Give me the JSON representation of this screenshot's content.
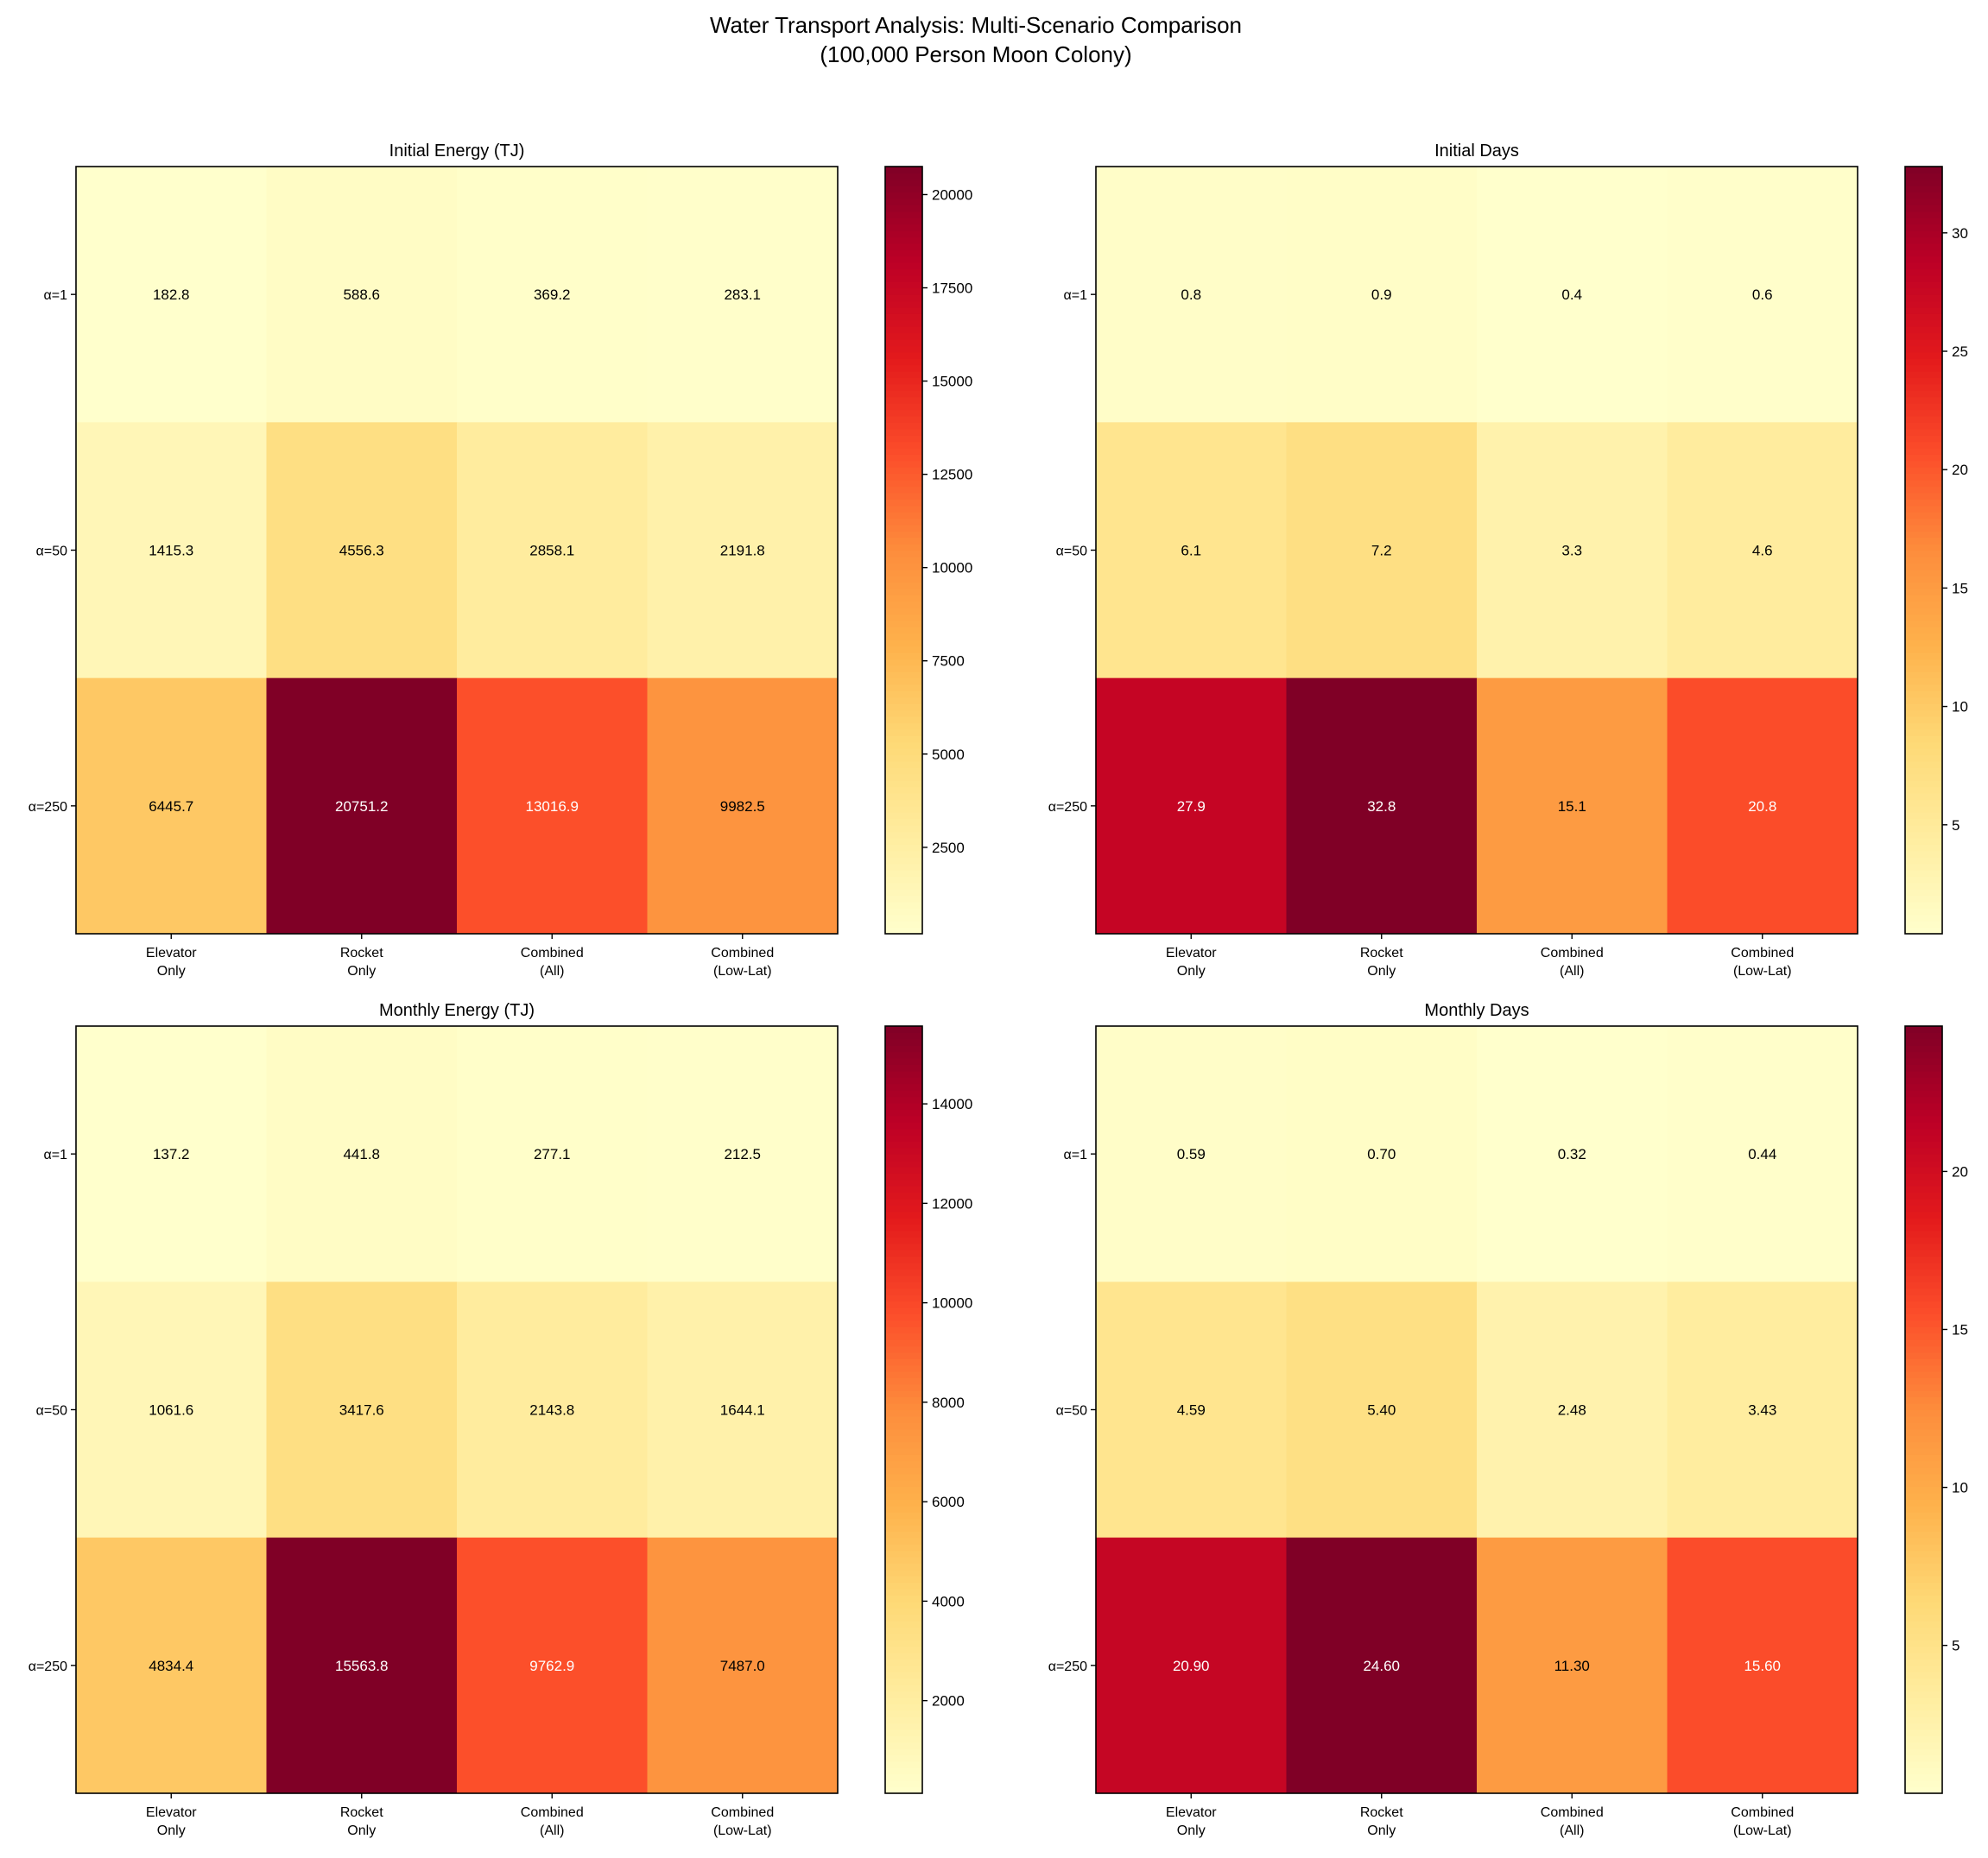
{
  "title_line1": "Water Transport Analysis: Multi-Scenario Comparison",
  "title_line2": "(100,000 Person Moon Colony)",
  "chart_data": [
    {
      "type": "heatmap",
      "title": "Initial Energy (TJ)",
      "colormap": "YlOrRd",
      "x_categories": [
        [
          "Elevator",
          "Only"
        ],
        [
          "Rocket",
          "Only"
        ],
        [
          "Combined",
          "(All)"
        ],
        [
          "Combined",
          "(Low-Lat)"
        ]
      ],
      "y_categories": [
        "α=1",
        "α=50",
        "α=250"
      ],
      "values": [
        [
          182.8,
          588.6,
          369.2,
          283.1
        ],
        [
          1415.3,
          4556.3,
          2858.1,
          2191.8
        ],
        [
          6445.7,
          20751.2,
          13016.9,
          9982.5
        ]
      ],
      "labels": [
        [
          "182.8",
          "588.6",
          "369.2",
          "283.1"
        ],
        [
          "1415.3",
          "4556.3",
          "2858.1",
          "2191.8"
        ],
        [
          "6445.7",
          "20751.2",
          "13016.9",
          "9982.5"
        ]
      ],
      "colorbar_range": [
        182.8,
        20751.2
      ],
      "colorbar_ticks": [
        "2500",
        "5000",
        "7500",
        "10000",
        "12500",
        "15000",
        "17500",
        "20000"
      ]
    },
    {
      "type": "heatmap",
      "title": "Initial Days",
      "colormap": "YlOrRd",
      "x_categories": [
        [
          "Elevator",
          "Only"
        ],
        [
          "Rocket",
          "Only"
        ],
        [
          "Combined",
          "(All)"
        ],
        [
          "Combined",
          "(Low-Lat)"
        ]
      ],
      "y_categories": [
        "α=1",
        "α=50",
        "α=250"
      ],
      "values": [
        [
          0.8,
          0.9,
          0.4,
          0.6
        ],
        [
          6.1,
          7.2,
          3.3,
          4.6
        ],
        [
          27.9,
          32.8,
          15.1,
          20.8
        ]
      ],
      "labels": [
        [
          "0.8",
          "0.9",
          "0.4",
          "0.6"
        ],
        [
          "6.1",
          "7.2",
          "3.3",
          "4.6"
        ],
        [
          "27.9",
          "32.8",
          "15.1",
          "20.8"
        ]
      ],
      "colorbar_range": [
        0.4,
        32.8
      ],
      "colorbar_ticks": [
        "5",
        "10",
        "15",
        "20",
        "25",
        "30"
      ]
    },
    {
      "type": "heatmap",
      "title": "Monthly Energy (TJ)",
      "colormap": "YlOrRd",
      "x_categories": [
        [
          "Elevator",
          "Only"
        ],
        [
          "Rocket",
          "Only"
        ],
        [
          "Combined",
          "(All)"
        ],
        [
          "Combined",
          "(Low-Lat)"
        ]
      ],
      "y_categories": [
        "α=1",
        "α=50",
        "α=250"
      ],
      "values": [
        [
          137.2,
          441.8,
          277.1,
          212.5
        ],
        [
          1061.6,
          3417.6,
          2143.8,
          1644.1
        ],
        [
          4834.4,
          15563.8,
          9762.9,
          7487.0
        ]
      ],
      "labels": [
        [
          "137.2",
          "441.8",
          "277.1",
          "212.5"
        ],
        [
          "1061.6",
          "3417.6",
          "2143.8",
          "1644.1"
        ],
        [
          "4834.4",
          "15563.8",
          "9762.9",
          "7487.0"
        ]
      ],
      "colorbar_range": [
        137.2,
        15563.8
      ],
      "colorbar_ticks": [
        "2000",
        "4000",
        "6000",
        "8000",
        "10000",
        "12000",
        "14000"
      ]
    },
    {
      "type": "heatmap",
      "title": "Monthly Days",
      "colormap": "YlOrRd",
      "x_categories": [
        [
          "Elevator",
          "Only"
        ],
        [
          "Rocket",
          "Only"
        ],
        [
          "Combined",
          "(All)"
        ],
        [
          "Combined",
          "(Low-Lat)"
        ]
      ],
      "y_categories": [
        "α=1",
        "α=50",
        "α=250"
      ],
      "values": [
        [
          0.59,
          0.7,
          0.32,
          0.44
        ],
        [
          4.59,
          5.4,
          2.48,
          3.43
        ],
        [
          20.9,
          24.6,
          11.3,
          15.6
        ]
      ],
      "labels": [
        [
          "0.59",
          "0.70",
          "0.32",
          "0.44"
        ],
        [
          "4.59",
          "5.40",
          "2.48",
          "3.43"
        ],
        [
          "20.90",
          "24.60",
          "11.30",
          "15.60"
        ]
      ],
      "colorbar_range": [
        0.32,
        24.6
      ],
      "colorbar_ticks": [
        "5",
        "10",
        "15",
        "20"
      ]
    }
  ]
}
